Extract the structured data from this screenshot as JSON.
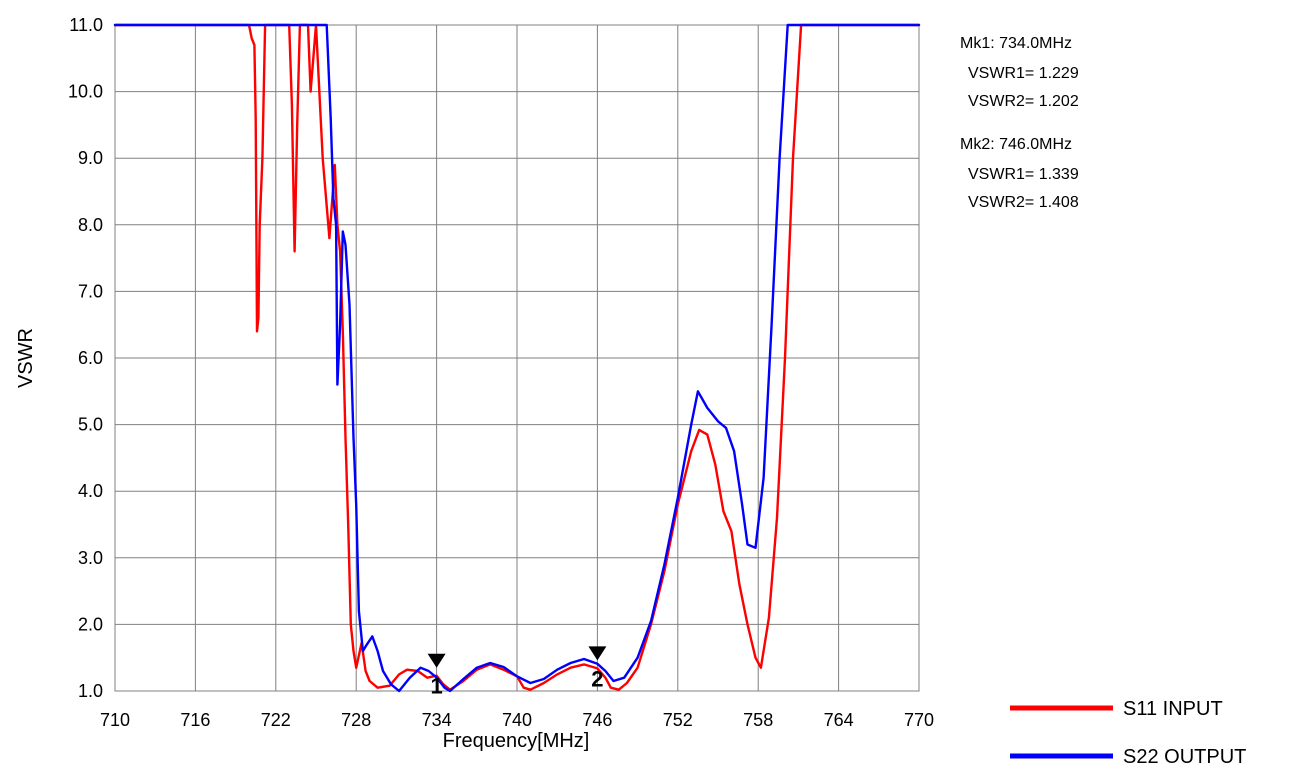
{
  "chart_data": {
    "type": "line",
    "xlabel": "Frequency[MHz]",
    "ylabel": "VSWR",
    "xlim": [
      710,
      770
    ],
    "ylim": [
      1.0,
      11.0
    ],
    "xticks": [
      710,
      716,
      722,
      728,
      734,
      740,
      746,
      752,
      758,
      764,
      770
    ],
    "xtick_labels": [
      "710",
      "716",
      "722",
      "728",
      "734",
      "740",
      "746",
      "752",
      "758",
      "764",
      "770"
    ],
    "yticks": [
      1,
      2,
      3,
      4,
      5,
      6,
      7,
      8,
      9,
      10,
      11
    ],
    "ytick_labels": [
      "1.0",
      "2.0",
      "3.0",
      "4.0",
      "5.0",
      "6.0",
      "7.0",
      "8.0",
      "9.0",
      "10.0",
      "11.0"
    ],
    "grid": true,
    "legend_position": "bottom-right",
    "series": [
      {
        "name": "S11 INPUT",
        "color": "#ff0000",
        "points": [
          [
            710,
            11.0
          ],
          [
            720.0,
            11.0
          ],
          [
            720.2,
            10.8
          ],
          [
            720.4,
            10.7
          ],
          [
            720.5,
            9.6
          ],
          [
            720.6,
            6.4
          ],
          [
            720.7,
            6.6
          ],
          [
            720.8,
            8.0
          ],
          [
            721.0,
            9.0
          ],
          [
            721.2,
            11.0
          ],
          [
            722.0,
            11.0
          ],
          [
            723.0,
            11.0
          ],
          [
            723.2,
            9.8
          ],
          [
            723.4,
            7.6
          ],
          [
            723.6,
            9.5
          ],
          [
            723.8,
            11.0
          ],
          [
            724.4,
            11.0
          ],
          [
            724.6,
            10.0
          ],
          [
            724.8,
            10.5
          ],
          [
            725.0,
            11.0
          ],
          [
            725.5,
            9.0
          ],
          [
            726.0,
            7.8
          ],
          [
            726.4,
            8.9
          ],
          [
            726.6,
            8.0
          ],
          [
            726.8,
            7.6
          ],
          [
            727.0,
            6.4
          ],
          [
            727.2,
            4.8
          ],
          [
            727.4,
            3.5
          ],
          [
            727.6,
            2.0
          ],
          [
            727.8,
            1.6
          ],
          [
            728.0,
            1.35
          ],
          [
            728.4,
            1.72
          ],
          [
            728.7,
            1.3
          ],
          [
            729.0,
            1.15
          ],
          [
            729.6,
            1.05
          ],
          [
            730.5,
            1.08
          ],
          [
            731.2,
            1.25
          ],
          [
            731.8,
            1.32
          ],
          [
            732.6,
            1.3
          ],
          [
            733.3,
            1.2
          ],
          [
            734.0,
            1.229
          ],
          [
            734.5,
            1.1
          ],
          [
            735.0,
            1.02
          ],
          [
            736.0,
            1.15
          ],
          [
            737.0,
            1.32
          ],
          [
            738.0,
            1.4
          ],
          [
            739.0,
            1.32
          ],
          [
            740.0,
            1.22
          ],
          [
            740.5,
            1.05
          ],
          [
            741.0,
            1.02
          ],
          [
            742.0,
            1.12
          ],
          [
            743.0,
            1.25
          ],
          [
            744.0,
            1.35
          ],
          [
            745.0,
            1.4
          ],
          [
            746.0,
            1.339
          ],
          [
            746.6,
            1.2
          ],
          [
            747.0,
            1.05
          ],
          [
            747.6,
            1.02
          ],
          [
            748.2,
            1.12
          ],
          [
            749.0,
            1.35
          ],
          [
            750.0,
            2.0
          ],
          [
            751.0,
            2.8
          ],
          [
            752.0,
            3.8
          ],
          [
            753.0,
            4.6
          ],
          [
            753.6,
            4.92
          ],
          [
            754.2,
            4.85
          ],
          [
            754.8,
            4.4
          ],
          [
            755.4,
            3.7
          ],
          [
            756.0,
            3.4
          ],
          [
            756.6,
            2.6
          ],
          [
            757.2,
            2.0
          ],
          [
            757.8,
            1.5
          ],
          [
            758.2,
            1.35
          ],
          [
            758.8,
            2.1
          ],
          [
            759.4,
            3.6
          ],
          [
            760.0,
            6.0
          ],
          [
            760.6,
            9.0
          ],
          [
            761.2,
            11.0
          ],
          [
            770,
            11.0
          ]
        ]
      },
      {
        "name": "S22 OUTPUT",
        "color": "#0000ff",
        "points": [
          [
            710,
            11.0
          ],
          [
            725.8,
            11.0
          ],
          [
            726.1,
            9.6
          ],
          [
            726.3,
            8.4
          ],
          [
            726.5,
            8.0
          ],
          [
            726.6,
            5.6
          ],
          [
            726.8,
            6.5
          ],
          [
            727.0,
            7.9
          ],
          [
            727.2,
            7.7
          ],
          [
            727.5,
            6.8
          ],
          [
            727.8,
            4.8
          ],
          [
            728.0,
            3.8
          ],
          [
            728.2,
            2.2
          ],
          [
            728.5,
            1.6
          ],
          [
            728.8,
            1.7
          ],
          [
            729.2,
            1.82
          ],
          [
            729.6,
            1.6
          ],
          [
            730.0,
            1.3
          ],
          [
            730.6,
            1.1
          ],
          [
            731.2,
            1.0
          ],
          [
            732.0,
            1.2
          ],
          [
            732.8,
            1.35
          ],
          [
            733.4,
            1.3
          ],
          [
            734.0,
            1.202
          ],
          [
            734.6,
            1.05
          ],
          [
            735.0,
            1.0
          ],
          [
            736.0,
            1.18
          ],
          [
            737.0,
            1.35
          ],
          [
            738.0,
            1.42
          ],
          [
            739.0,
            1.36
          ],
          [
            740.0,
            1.22
          ],
          [
            741.0,
            1.12
          ],
          [
            742.0,
            1.18
          ],
          [
            743.0,
            1.32
          ],
          [
            744.0,
            1.42
          ],
          [
            745.0,
            1.48
          ],
          [
            746.0,
            1.408
          ],
          [
            746.6,
            1.3
          ],
          [
            747.2,
            1.15
          ],
          [
            748.0,
            1.2
          ],
          [
            749.0,
            1.5
          ],
          [
            750.0,
            2.05
          ],
          [
            751.0,
            2.9
          ],
          [
            752.0,
            3.9
          ],
          [
            753.0,
            5.0
          ],
          [
            753.5,
            5.5
          ],
          [
            754.2,
            5.25
          ],
          [
            755.0,
            5.05
          ],
          [
            755.6,
            4.95
          ],
          [
            756.2,
            4.6
          ],
          [
            756.8,
            3.8
          ],
          [
            757.2,
            3.2
          ],
          [
            757.8,
            3.15
          ],
          [
            758.4,
            4.2
          ],
          [
            759.0,
            6.5
          ],
          [
            759.6,
            9.0
          ],
          [
            760.2,
            11.0
          ],
          [
            770,
            11.0
          ]
        ]
      }
    ],
    "markers": [
      {
        "label": "1",
        "frequency": 734.0,
        "value": 1.229
      },
      {
        "label": "2",
        "frequency": 746.0,
        "value": 1.339
      }
    ]
  },
  "marker_readout": [
    {
      "title": "Mk1:  734.0MHz",
      "vswr1": "VSWR1= 1.229",
      "vswr2": "VSWR2= 1.202"
    },
    {
      "title": "Mk2:  746.0MHz",
      "vswr1": "VSWR1= 1.339",
      "vswr2": "VSWR2= 1.408"
    }
  ]
}
